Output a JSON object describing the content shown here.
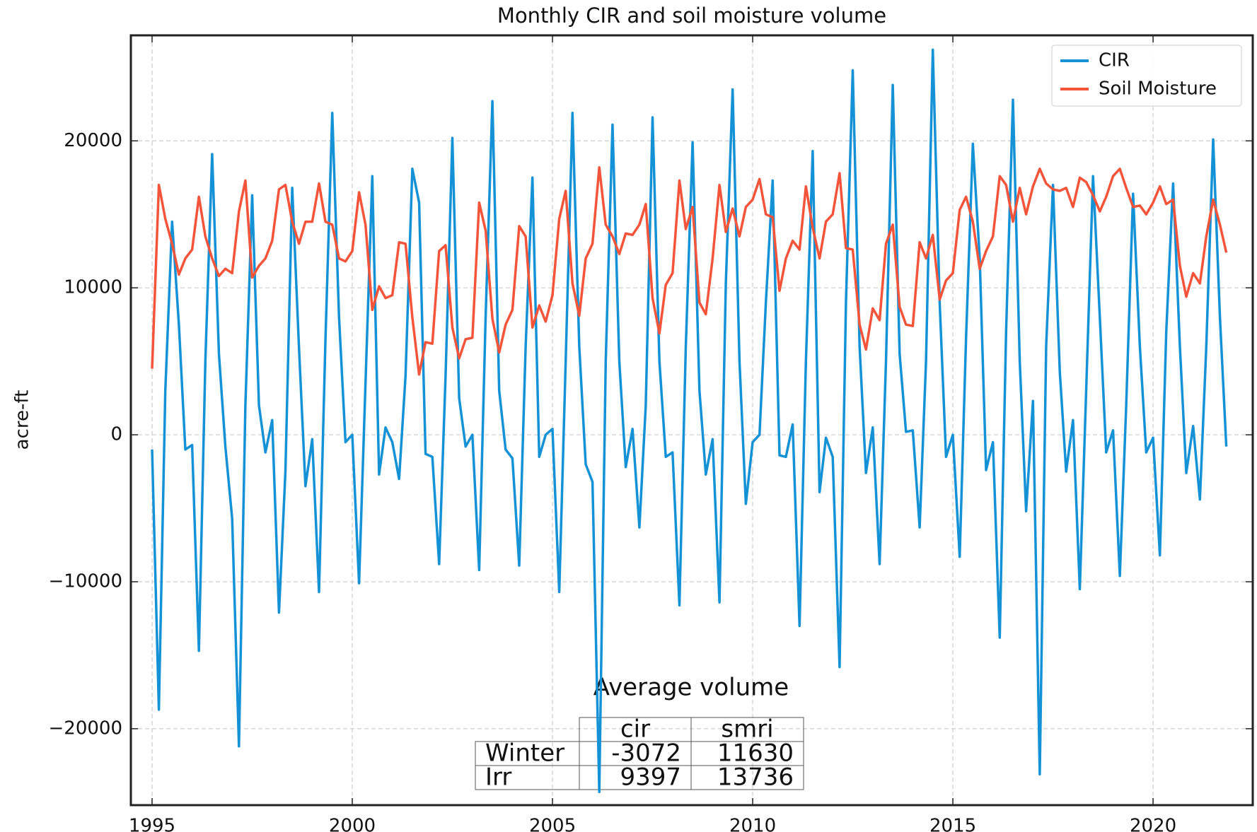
{
  "chart_data": {
    "type": "line",
    "title": "Monthly CIR and soil moisture volume",
    "y_label": "acre-ft",
    "xlim": [
      1994.47,
      2022.49
    ],
    "xticks": [
      1995,
      2000,
      2005,
      2010,
      2015,
      2020
    ],
    "ylim": [
      -25200,
      27180
    ],
    "yticks": [
      {
        "value": -20000,
        "label": "−20000"
      },
      {
        "value": -10000,
        "label": "−10000"
      },
      0,
      10000,
      20000
    ],
    "grid": true,
    "legend": "upper right",
    "x": [
      1995,
      1995.17,
      1995.33,
      1995.5,
      1995.67,
      1995.83,
      1996,
      1996.17,
      1996.33,
      1996.5,
      1996.67,
      1996.83,
      1997,
      1997.17,
      1997.33,
      1997.5,
      1997.67,
      1997.83,
      1998,
      1998.17,
      1998.33,
      1998.5,
      1998.67,
      1998.83,
      1999,
      1999.17,
      1999.33,
      1999.5,
      1999.67,
      1999.83,
      2000,
      2000.17,
      2000.33,
      2000.5,
      2000.67,
      2000.83,
      2001,
      2001.17,
      2001.33,
      2001.5,
      2001.67,
      2001.83,
      2002,
      2002.17,
      2002.33,
      2002.5,
      2002.67,
      2002.83,
      2003,
      2003.17,
      2003.33,
      2003.5,
      2003.67,
      2003.83,
      2004,
      2004.17,
      2004.33,
      2004.5,
      2004.67,
      2004.83,
      2005,
      2005.17,
      2005.33,
      2005.5,
      2005.67,
      2005.83,
      2006,
      2006.17,
      2006.33,
      2006.5,
      2006.67,
      2006.83,
      2007,
      2007.17,
      2007.33,
      2007.5,
      2007.67,
      2007.83,
      2008,
      2008.17,
      2008.33,
      2008.5,
      2008.67,
      2008.83,
      2009,
      2009.17,
      2009.33,
      2009.5,
      2009.67,
      2009.83,
      2010,
      2010.17,
      2010.33,
      2010.5,
      2010.67,
      2010.83,
      2011,
      2011.17,
      2011.33,
      2011.5,
      2011.67,
      2011.83,
      2012,
      2012.17,
      2012.33,
      2012.5,
      2012.67,
      2012.83,
      2013,
      2013.17,
      2013.33,
      2013.5,
      2013.67,
      2013.83,
      2014,
      2014.17,
      2014.33,
      2014.5,
      2014.67,
      2014.83,
      2015,
      2015.17,
      2015.33,
      2015.5,
      2015.67,
      2015.83,
      2016,
      2016.17,
      2016.33,
      2016.5,
      2016.67,
      2016.83,
      2017,
      2017.17,
      2017.33,
      2017.5,
      2017.67,
      2017.83,
      2018,
      2018.17,
      2018.33,
      2018.5,
      2018.67,
      2018.83,
      2019,
      2019.17,
      2019.33,
      2019.5,
      2019.67,
      2019.83,
      2020,
      2020.17,
      2020.33,
      2020.5,
      2020.67,
      2020.83,
      2021,
      2021.17,
      2021.33,
      2021.5,
      2021.67,
      2021.83
    ],
    "series": [
      {
        "name": "CIR",
        "color": "#1592d6",
        "values": [
          -1000,
          -18700,
          3000,
          14500,
          7500,
          -1000,
          -700,
          -14700,
          5000,
          19100,
          5500,
          -800,
          -5700,
          -21200,
          2000,
          16300,
          2000,
          -1200,
          1000,
          -12100,
          -2500,
          16800,
          5900,
          -3500,
          -300,
          -10700,
          6500,
          21900,
          8000,
          -500,
          0,
          -10100,
          3500,
          17600,
          -2700,
          500,
          -500,
          -3000,
          4000,
          18100,
          15800,
          -1300,
          -1500,
          -8800,
          4000,
          20200,
          2500,
          -800,
          0,
          -9200,
          8000,
          22700,
          3000,
          -1000,
          -1600,
          -8900,
          6000,
          17500,
          -1500,
          0,
          400,
          -10700,
          5000,
          21900,
          6000,
          -2000,
          -3200,
          -24300,
          5000,
          21100,
          5000,
          -2200,
          400,
          -6300,
          2000,
          21600,
          5000,
          -1500,
          -1200,
          -11600,
          6000,
          19900,
          3000,
          -2700,
          -300,
          -11400,
          10300,
          23500,
          5000,
          -4700,
          -500,
          0,
          9000,
          17300,
          -1400,
          -1500,
          700,
          -13000,
          5000,
          19300,
          -3900,
          -200,
          -1500,
          -15800,
          9000,
          24800,
          6000,
          -2600,
          500,
          -8800,
          5000,
          23800,
          5500,
          200,
          300,
          -6300,
          5000,
          26200,
          9000,
          -1500,
          0,
          -8300,
          6600,
          19800,
          12000,
          -2400,
          -500,
          -13800,
          7000,
          22800,
          5000,
          -5200,
          2300,
          -23100,
          6000,
          17000,
          4300,
          -2500,
          1000,
          -10500,
          3000,
          17600,
          8000,
          -1200,
          300,
          -9600,
          2000,
          16400,
          6000,
          -1200,
          -200,
          -8200,
          7000,
          17100,
          6000,
          -2600,
          600,
          -4400,
          6000,
          20100,
          8000,
          -800
        ]
      },
      {
        "name": "Soil Moisture",
        "color": "#f4553a",
        "values": [
          4500,
          17000,
          14700,
          13000,
          10900,
          12000,
          12600,
          16200,
          13500,
          12000,
          10800,
          11300,
          11000,
          15200,
          17300,
          10700,
          11500,
          12000,
          13200,
          16700,
          17000,
          14500,
          13000,
          14500,
          14500,
          17100,
          14500,
          14300,
          12000,
          11800,
          12500,
          16500,
          14300,
          8500,
          10100,
          9300,
          9500,
          13100,
          13000,
          8000,
          4100,
          6300,
          6200,
          12500,
          12900,
          7300,
          5200,
          6500,
          6600,
          15800,
          13900,
          7900,
          5600,
          7500,
          8500,
          14200,
          13500,
          7300,
          8800,
          7700,
          9500,
          14700,
          16600,
          10300,
          8100,
          12000,
          13000,
          18200,
          14300,
          13500,
          12300,
          13700,
          13600,
          14300,
          15700,
          9300,
          6900,
          10200,
          11000,
          17300,
          14000,
          15500,
          9000,
          8200,
          12000,
          17000,
          13800,
          15400,
          13500,
          15500,
          16000,
          17400,
          15000,
          14800,
          9800,
          12000,
          13200,
          12600,
          16900,
          14100,
          12000,
          14500,
          15000,
          17800,
          12700,
          12600,
          7500,
          5800,
          8600,
          7800,
          13000,
          14300,
          8700,
          7500,
          7400,
          13100,
          12000,
          13600,
          9200,
          10500,
          11000,
          15300,
          16200,
          14500,
          11300,
          12500,
          13500,
          17600,
          17000,
          14500,
          16800,
          15000,
          16900,
          18100,
          17100,
          16700,
          16600,
          16800,
          15500,
          17500,
          17200,
          16300,
          15200,
          16200,
          17600,
          18100,
          16800,
          15500,
          15600,
          15000,
          15800,
          16900,
          15700,
          16000,
          11500,
          9400,
          11000,
          10300,
          13500,
          16000,
          14300,
          12400
        ]
      }
    ],
    "table": {
      "title": "Average volume",
      "columns": [
        "cir",
        "smri"
      ],
      "rows": [
        {
          "label": "Winter",
          "values": [
            -3072,
            11630
          ]
        },
        {
          "label": "Irr",
          "values": [
            9397,
            13736
          ]
        }
      ]
    }
  }
}
